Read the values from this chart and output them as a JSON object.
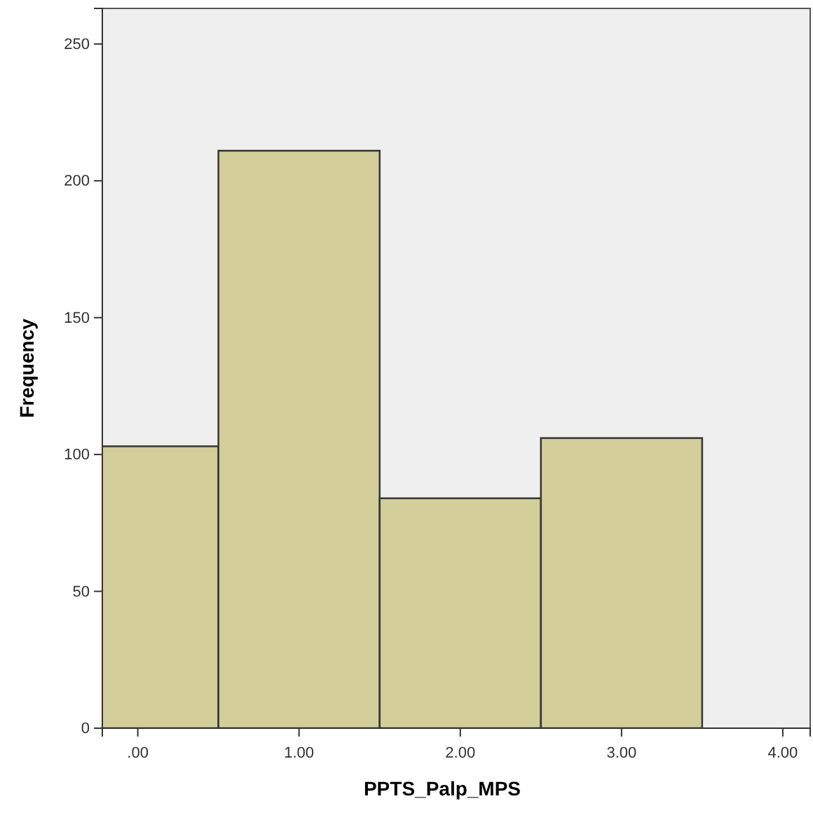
{
  "chart_data": {
    "type": "histogram",
    "xlabel": "PPTS_Palp_MPS",
    "ylabel": "Frequency",
    "bins": [
      -0.5,
      0.5,
      1.5,
      2.5,
      3.5
    ],
    "values": [
      103,
      211,
      84,
      106
    ],
    "color": "#d3ce99",
    "xlim": [
      -0.22,
      4.17
    ],
    "xticks": [
      {
        "value": 0,
        "label": ".00"
      },
      {
        "value": 1,
        "label": "1.00"
      },
      {
        "value": 2,
        "label": "2.00"
      },
      {
        "value": 3,
        "label": "3.00"
      },
      {
        "value": 4,
        "label": "4.00"
      }
    ],
    "ylim": [
      0,
      263
    ],
    "yticks": [
      0,
      50,
      100,
      150,
      200,
      250
    ],
    "grid": false
  }
}
